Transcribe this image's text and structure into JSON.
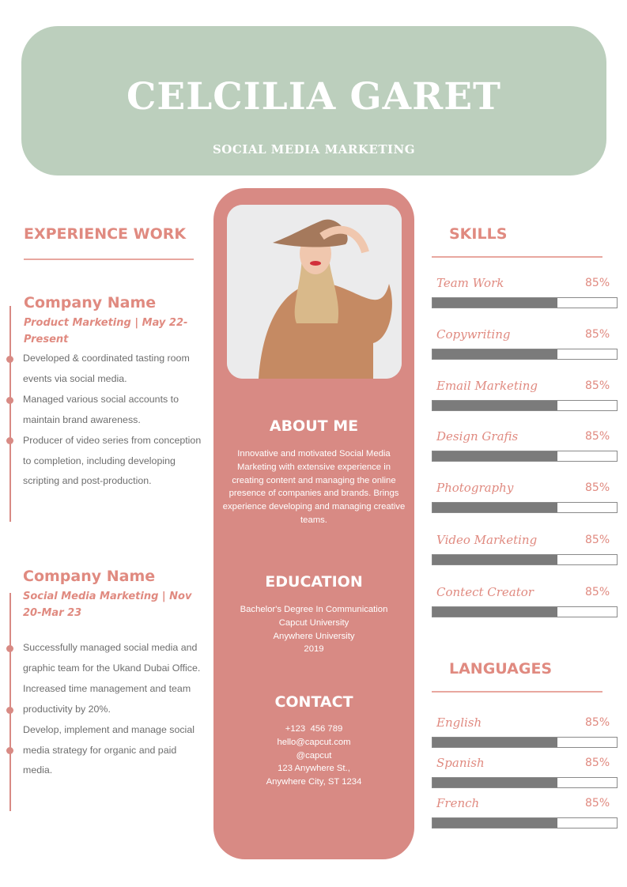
{
  "header": {
    "name": "CELCILIA GARET",
    "role": "SOCIAL MEDIA MARKETING"
  },
  "colors": {
    "header_bg": "#bccfbd",
    "accent": "#d88a84",
    "heading": "#e08a80",
    "bar_fill": "#7b7b7b"
  },
  "experience": {
    "title": "EXPERIENCE WORK",
    "jobs": [
      {
        "company": "Company Name",
        "position": "Product Marketing | May 22-Present",
        "bullets": [
          "Developed & coordinated tasting room events via social media.",
          "Managed various social accounts to maintain brand awareness.",
          "Producer of video series from conception to completion, including developing scripting and post-production."
        ]
      },
      {
        "company": "Company Name",
        "position": "Social Media Marketing | Nov 20-Mar 23",
        "bullets": [
          "Successfully managed social media and graphic team for the Ukand Dubai Office.",
          "Increased time management and team productivity by 20%.",
          "Develop, implement and manage social media strategy for organic and paid media."
        ]
      }
    ]
  },
  "about": {
    "title": "ABOUT ME",
    "text": "Innovative and motivated Social Media Marketing with extensive experience in creating content and managing the online presence of companies and brands. Brings experience developing and managing creative teams."
  },
  "education": {
    "title": "EDUCATION",
    "lines": [
      "Bachelor's Degree In Communication",
      "Capcut University",
      "Anywhere University",
      "2019"
    ]
  },
  "contact": {
    "title": "CONTACT",
    "lines": [
      "+123  456 789",
      "hello@capcut.com",
      "@capcut",
      "123 Anywhere St.,",
      "Anywhere City, ST 1234"
    ]
  },
  "skills": {
    "title": "SKILLS",
    "items": [
      {
        "label": "Team Work",
        "value": "85%",
        "fill_percent": 68
      },
      {
        "label": "Copywriting",
        "value": "85%",
        "fill_percent": 68
      },
      {
        "label": "Email Marketing",
        "value": "85%",
        "fill_percent": 68
      },
      {
        "label": "Design Grafis",
        "value": "85%",
        "fill_percent": 68
      },
      {
        "label": "Photography",
        "value": "85%",
        "fill_percent": 68
      },
      {
        "label": "Video Marketing",
        "value": "85%",
        "fill_percent": 68
      },
      {
        "label": "Contect Creator",
        "value": "85%",
        "fill_percent": 68
      }
    ]
  },
  "languages": {
    "title": "LANGUAGES",
    "items": [
      {
        "label": "English",
        "value": "85%",
        "fill_percent": 68
      },
      {
        "label": "Spanish",
        "value": "85%",
        "fill_percent": 68
      },
      {
        "label": "French",
        "value": "85%",
        "fill_percent": 68
      }
    ]
  }
}
